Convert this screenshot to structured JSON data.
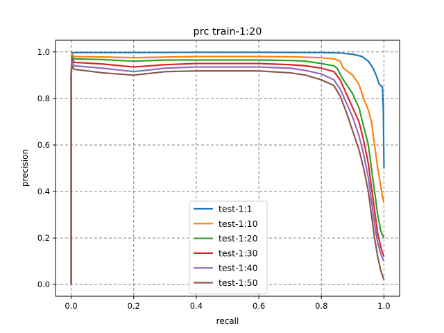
{
  "chart_data": {
    "type": "line",
    "title": "prc train-1:20",
    "xlabel": "recall",
    "ylabel": "precision",
    "xlim": [
      -0.05,
      1.05
    ],
    "ylim": [
      -0.05,
      1.05
    ],
    "xticks": [
      0.0,
      0.2,
      0.4,
      0.6,
      0.8,
      1.0
    ],
    "xtick_labels": [
      "0.0",
      "0.2",
      "0.4",
      "0.6",
      "0.8",
      "1.0"
    ],
    "yticks": [
      0.0,
      0.2,
      0.4,
      0.6,
      0.8,
      1.0
    ],
    "ytick_labels": [
      "0.0",
      "0.2",
      "0.4",
      "0.6",
      "0.8",
      "1.0"
    ],
    "grid": true,
    "legend_position": "lower-center",
    "series": [
      {
        "name": "test-1:1",
        "color": "#1f77b4",
        "points": [
          [
            0.0,
            0.0
          ],
          [
            0.0,
            0.9
          ],
          [
            0.003,
            0.995
          ],
          [
            0.01,
            0.997
          ],
          [
            0.2,
            0.997
          ],
          [
            0.4,
            0.998
          ],
          [
            0.6,
            0.998
          ],
          [
            0.8,
            0.997
          ],
          [
            0.86,
            0.995
          ],
          [
            0.9,
            0.99
          ],
          [
            0.93,
            0.98
          ],
          [
            0.95,
            0.96
          ],
          [
            0.965,
            0.93
          ],
          [
            0.975,
            0.9
          ],
          [
            0.985,
            0.86
          ],
          [
            0.995,
            0.85
          ],
          [
            0.998,
            0.75
          ],
          [
            1.0,
            0.5
          ]
        ]
      },
      {
        "name": "test-1:10",
        "color": "#ff7f0e",
        "points": [
          [
            0.0,
            0.0
          ],
          [
            0.0,
            0.9
          ],
          [
            0.003,
            0.99
          ],
          [
            0.01,
            0.98
          ],
          [
            0.1,
            0.978
          ],
          [
            0.2,
            0.975
          ],
          [
            0.4,
            0.98
          ],
          [
            0.6,
            0.98
          ],
          [
            0.7,
            0.979
          ],
          [
            0.8,
            0.975
          ],
          [
            0.84,
            0.97
          ],
          [
            0.86,
            0.96
          ],
          [
            0.87,
            0.93
          ],
          [
            0.9,
            0.9
          ],
          [
            0.92,
            0.86
          ],
          [
            0.935,
            0.8
          ],
          [
            0.95,
            0.75
          ],
          [
            0.96,
            0.7
          ],
          [
            0.97,
            0.6
          ],
          [
            0.98,
            0.5
          ],
          [
            0.99,
            0.42
          ],
          [
            0.995,
            0.38
          ],
          [
            1.0,
            0.35
          ]
        ]
      },
      {
        "name": "test-1:20",
        "color": "#2ca02c",
        "points": [
          [
            0.0,
            0.0
          ],
          [
            0.0,
            0.9
          ],
          [
            0.003,
            0.98
          ],
          [
            0.01,
            0.97
          ],
          [
            0.1,
            0.967
          ],
          [
            0.2,
            0.96
          ],
          [
            0.3,
            0.965
          ],
          [
            0.4,
            0.965
          ],
          [
            0.6,
            0.965
          ],
          [
            0.7,
            0.963
          ],
          [
            0.75,
            0.96
          ],
          [
            0.8,
            0.95
          ],
          [
            0.84,
            0.94
          ],
          [
            0.85,
            0.93
          ],
          [
            0.87,
            0.88
          ],
          [
            0.9,
            0.82
          ],
          [
            0.92,
            0.76
          ],
          [
            0.935,
            0.68
          ],
          [
            0.95,
            0.6
          ],
          [
            0.96,
            0.5
          ],
          [
            0.97,
            0.4
          ],
          [
            0.98,
            0.3
          ],
          [
            0.99,
            0.23
          ],
          [
            1.0,
            0.2
          ]
        ]
      },
      {
        "name": "test-1:30",
        "color": "#d62728",
        "points": [
          [
            0.0,
            0.0
          ],
          [
            0.0,
            0.9
          ],
          [
            0.003,
            0.97
          ],
          [
            0.01,
            0.955
          ],
          [
            0.1,
            0.948
          ],
          [
            0.2,
            0.935
          ],
          [
            0.3,
            0.945
          ],
          [
            0.4,
            0.95
          ],
          [
            0.6,
            0.95
          ],
          [
            0.7,
            0.945
          ],
          [
            0.75,
            0.94
          ],
          [
            0.8,
            0.93
          ],
          [
            0.84,
            0.915
          ],
          [
            0.86,
            0.88
          ],
          [
            0.88,
            0.82
          ],
          [
            0.9,
            0.76
          ],
          [
            0.92,
            0.7
          ],
          [
            0.935,
            0.62
          ],
          [
            0.95,
            0.52
          ],
          [
            0.96,
            0.42
          ],
          [
            0.97,
            0.32
          ],
          [
            0.98,
            0.22
          ],
          [
            0.99,
            0.16
          ],
          [
            1.0,
            0.12
          ]
        ]
      },
      {
        "name": "test-1:40",
        "color": "#9467bd",
        "points": [
          [
            0.0,
            0.0
          ],
          [
            0.0,
            0.9
          ],
          [
            0.003,
            0.96
          ],
          [
            0.01,
            0.94
          ],
          [
            0.1,
            0.93
          ],
          [
            0.2,
            0.915
          ],
          [
            0.3,
            0.93
          ],
          [
            0.4,
            0.935
          ],
          [
            0.6,
            0.935
          ],
          [
            0.7,
            0.93
          ],
          [
            0.75,
            0.92
          ],
          [
            0.8,
            0.905
          ],
          [
            0.84,
            0.88
          ],
          [
            0.86,
            0.84
          ],
          [
            0.88,
            0.78
          ],
          [
            0.9,
            0.72
          ],
          [
            0.92,
            0.64
          ],
          [
            0.935,
            0.56
          ],
          [
            0.95,
            0.46
          ],
          [
            0.96,
            0.36
          ],
          [
            0.97,
            0.26
          ],
          [
            0.98,
            0.18
          ],
          [
            0.99,
            0.13
          ],
          [
            1.0,
            0.1
          ]
        ]
      },
      {
        "name": "test-1:50",
        "color": "#8c564b",
        "points": [
          [
            0.0,
            0.0
          ],
          [
            0.0,
            0.9
          ],
          [
            0.003,
            0.94
          ],
          [
            0.01,
            0.925
          ],
          [
            0.1,
            0.91
          ],
          [
            0.2,
            0.9
          ],
          [
            0.3,
            0.915
          ],
          [
            0.4,
            0.918
          ],
          [
            0.6,
            0.918
          ],
          [
            0.7,
            0.91
          ],
          [
            0.75,
            0.9
          ],
          [
            0.8,
            0.88
          ],
          [
            0.84,
            0.855
          ],
          [
            0.86,
            0.81
          ],
          [
            0.88,
            0.74
          ],
          [
            0.9,
            0.66
          ],
          [
            0.92,
            0.58
          ],
          [
            0.935,
            0.5
          ],
          [
            0.95,
            0.4
          ],
          [
            0.96,
            0.3
          ],
          [
            0.97,
            0.2
          ],
          [
            0.98,
            0.12
          ],
          [
            0.99,
            0.06
          ],
          [
            1.0,
            0.02
          ]
        ]
      }
    ]
  }
}
